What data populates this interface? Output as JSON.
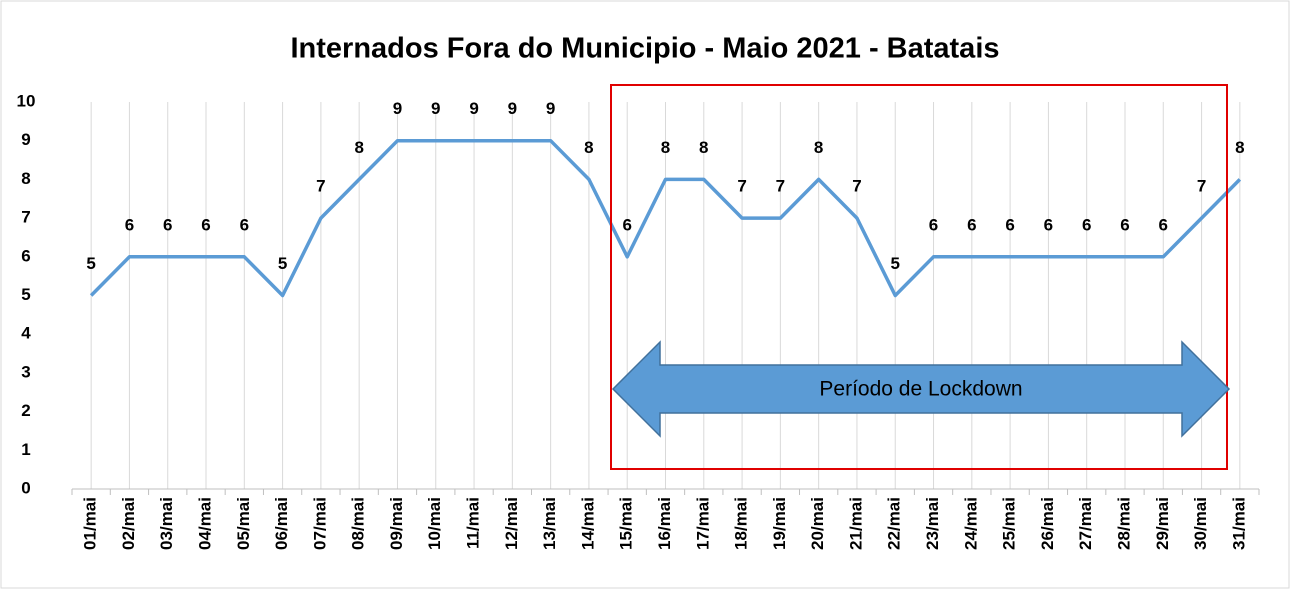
{
  "chart_data": {
    "type": "line",
    "title": "Internados Fora do Municipio - Maio 2021 - Batatais",
    "categories": [
      "01/mai",
      "02/mai",
      "03/mai",
      "04/mai",
      "05/mai",
      "06/mai",
      "07/mai",
      "08/mai",
      "09/mai",
      "10/mai",
      "11/mai",
      "12/mai",
      "13/mai",
      "14/mai",
      "15/mai",
      "16/mai",
      "17/mai",
      "18/mai",
      "19/mai",
      "20/mai",
      "21/mai",
      "22/mai",
      "23/mai",
      "24/mai",
      "25/mai",
      "26/mai",
      "27/mai",
      "28/mai",
      "29/mai",
      "30/mai",
      "31/mai"
    ],
    "values": [
      5,
      6,
      6,
      6,
      6,
      5,
      7,
      8,
      9,
      9,
      9,
      9,
      9,
      8,
      6,
      8,
      8,
      7,
      7,
      8,
      7,
      5,
      6,
      6,
      6,
      6,
      6,
      6,
      6,
      7,
      8
    ],
    "color": "#5b9bd5",
    "ylim": [
      0,
      10
    ],
    "yticks": [
      0,
      1,
      2,
      3,
      4,
      5,
      6,
      7,
      8,
      9,
      10
    ],
    "grid": true,
    "annotation": "Período de Lockdown"
  }
}
